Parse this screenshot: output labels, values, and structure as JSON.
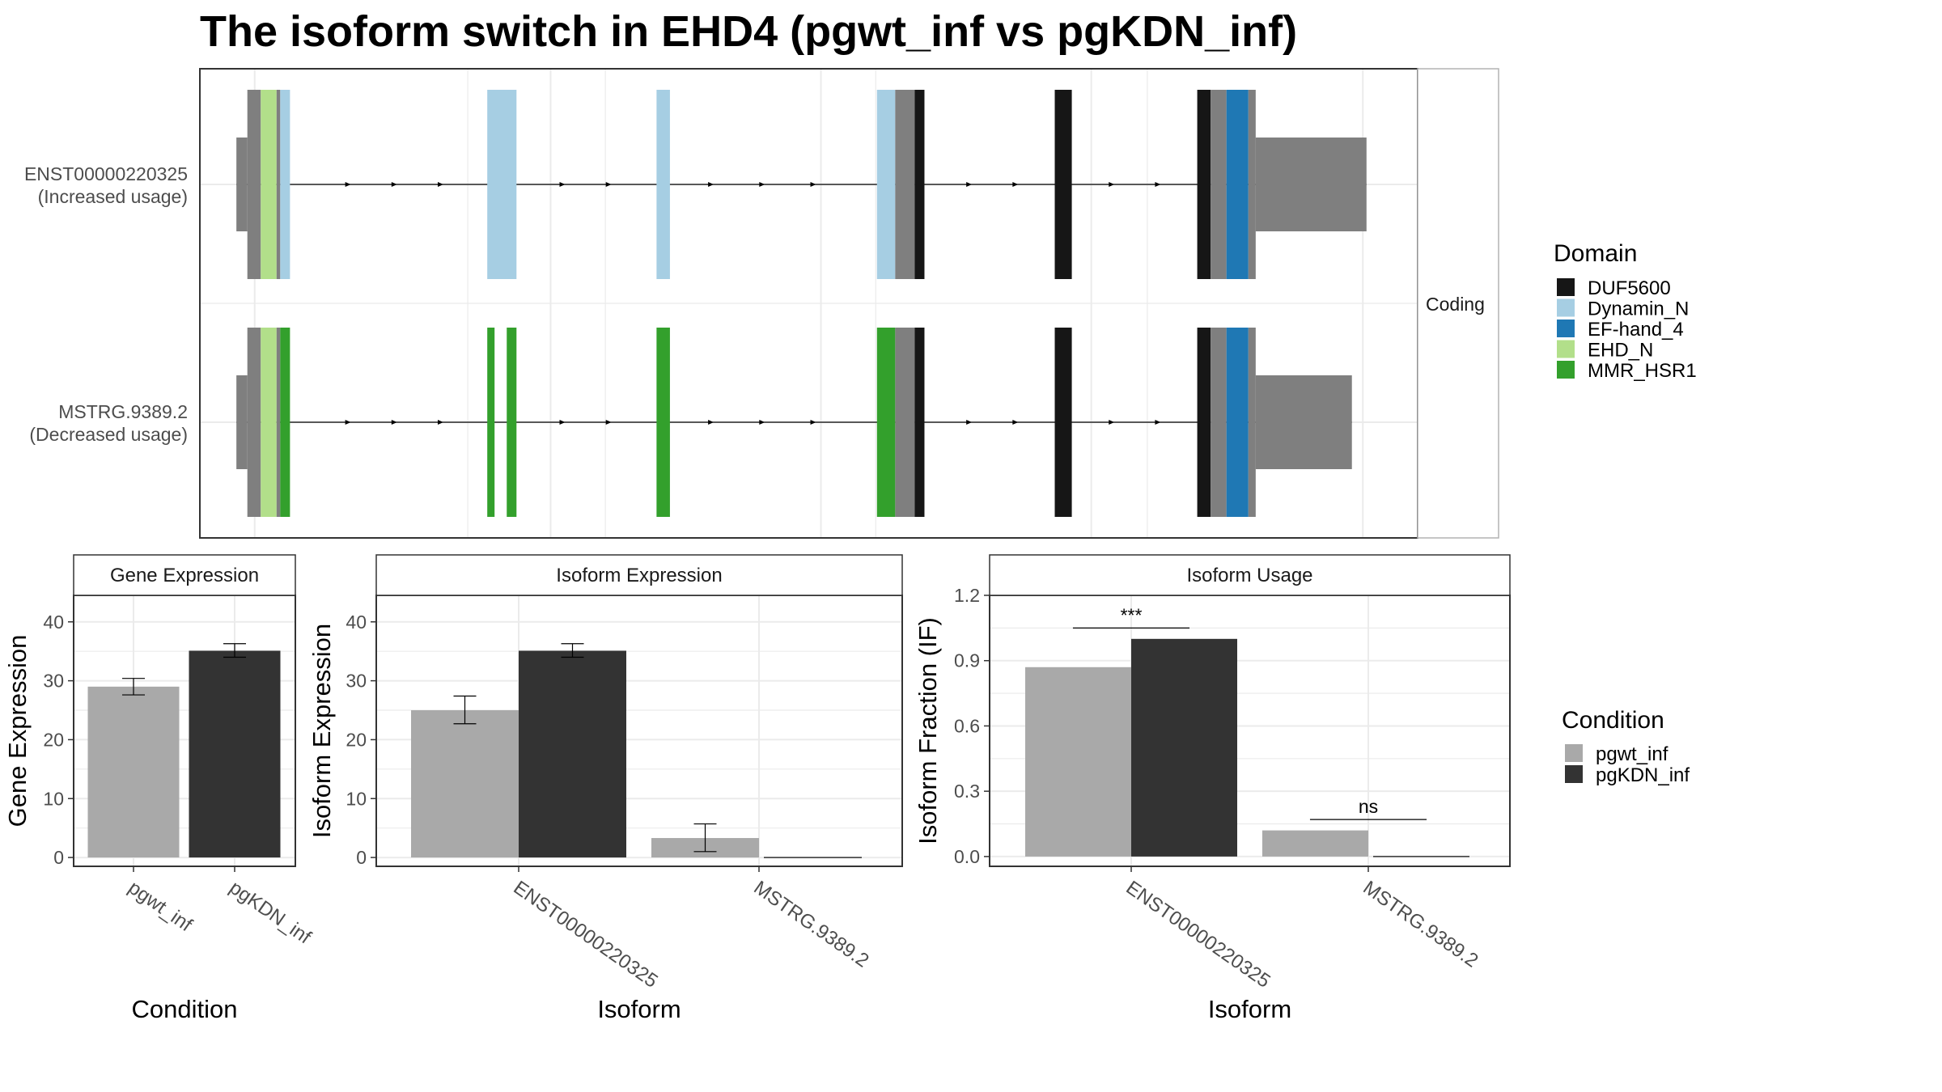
{
  "title": "The isoform switch in EHD4 (pgwt_inf vs pgKDN_inf)",
  "colors": {
    "utr": "#7f7f7f",
    "intron": "#000000",
    "grid": "#ebebeb",
    "panel_border": "#333333",
    "strip_border": "#b3b3b3",
    "pgwt_inf": "#a9a9a9",
    "pgKDN_inf": "#333333",
    "text": "#4d4d4d"
  },
  "domain_legend": {
    "title": "Domain",
    "items": [
      {
        "name": "DUF5600",
        "color": "#161616"
      },
      {
        "name": "Dynamin_N",
        "color": "#a6cee3"
      },
      {
        "name": "EF-hand_4",
        "color": "#1f78b4"
      },
      {
        "name": "EHD_N",
        "color": "#b2df8a"
      },
      {
        "name": "MMR_HSR1",
        "color": "#33a02c"
      }
    ]
  },
  "condition_legend": {
    "title": "Condition",
    "items": [
      {
        "name": "pgwt_inf",
        "color": "#a9a9a9"
      },
      {
        "name": "pgKDN_inf",
        "color": "#333333"
      }
    ]
  },
  "structure": {
    "facet_label": "Coding",
    "isoforms": [
      {
        "id": "ENST00000220325",
        "usage": "(Increased usage)",
        "blocks": [
          [
            0.03,
            0.039,
            "utr",
            "utr"
          ],
          [
            0.039,
            0.05,
            "utr",
            "cds"
          ],
          [
            0.05,
            0.063,
            "EHD_N",
            "cds"
          ],
          [
            0.063,
            0.066,
            "utr",
            "cds"
          ],
          [
            0.066,
            0.074,
            "Dynamin_N",
            "cds"
          ],
          [
            0.236,
            0.26,
            "Dynamin_N",
            "cds"
          ],
          [
            0.375,
            0.386,
            "Dynamin_N",
            "cds"
          ],
          [
            0.556,
            0.571,
            "Dynamin_N",
            "cds"
          ],
          [
            0.571,
            0.587,
            "utr",
            "cds"
          ],
          [
            0.587,
            0.595,
            "DUF5600",
            "cds"
          ],
          [
            0.702,
            0.716,
            "DUF5600",
            "cds"
          ],
          [
            0.819,
            0.83,
            "DUF5600",
            "cds"
          ],
          [
            0.83,
            0.843,
            "utr",
            "cds"
          ],
          [
            0.843,
            0.861,
            "EF-hand_4",
            "cds"
          ],
          [
            0.861,
            0.867,
            "utr",
            "cds"
          ],
          [
            0.867,
            0.958,
            "utr",
            "utr"
          ]
        ],
        "arrows": [
          0.122,
          0.16,
          0.198,
          0.298,
          0.336,
          0.42,
          0.462,
          0.504,
          0.632,
          0.67,
          0.749,
          0.787
        ]
      },
      {
        "id": "MSTRG.9389.2",
        "usage": "(Decreased usage)",
        "blocks": [
          [
            0.03,
            0.039,
            "utr",
            "utr"
          ],
          [
            0.039,
            0.05,
            "utr",
            "cds"
          ],
          [
            0.05,
            0.063,
            "EHD_N",
            "cds"
          ],
          [
            0.063,
            0.066,
            "utr",
            "cds"
          ],
          [
            0.066,
            0.074,
            "MMR_HSR1",
            "cds"
          ],
          [
            0.236,
            0.242,
            "MMR_HSR1",
            "cds"
          ],
          [
            0.252,
            0.26,
            "MMR_HSR1",
            "cds"
          ],
          [
            0.375,
            0.386,
            "MMR_HSR1",
            "cds"
          ],
          [
            0.556,
            0.571,
            "MMR_HSR1",
            "cds"
          ],
          [
            0.571,
            0.587,
            "utr",
            "cds"
          ],
          [
            0.587,
            0.595,
            "DUF5600",
            "cds"
          ],
          [
            0.702,
            0.716,
            "DUF5600",
            "cds"
          ],
          [
            0.819,
            0.83,
            "DUF5600",
            "cds"
          ],
          [
            0.83,
            0.843,
            "utr",
            "cds"
          ],
          [
            0.843,
            0.861,
            "EF-hand_4",
            "cds"
          ],
          [
            0.861,
            0.867,
            "utr",
            "cds"
          ],
          [
            0.867,
            0.946,
            "utr",
            "utr"
          ]
        ],
        "arrows": [
          0.122,
          0.16,
          0.198,
          0.298,
          0.336,
          0.42,
          0.462,
          0.504,
          0.632,
          0.67,
          0.749,
          0.787
        ]
      }
    ]
  },
  "chart_data": [
    {
      "type": "bar",
      "title": "Gene Expression",
      "xlabel": "Condition",
      "ylabel": "Gene Expression",
      "ylim": [
        -1.5,
        44.5
      ],
      "yticks": [
        0,
        10,
        20,
        30,
        40
      ],
      "tick_labels": [
        "0",
        "10",
        "20",
        "30",
        "40"
      ],
      "categories": [
        "pgwt_inf",
        "pgKDN_inf"
      ],
      "bars": [
        {
          "category": "pgwt_inf",
          "condition": "pgwt_inf",
          "value": 29.0,
          "err": [
            27.6,
            30.4
          ]
        },
        {
          "category": "pgKDN_inf",
          "condition": "pgKDN_inf",
          "value": 35.1,
          "err": [
            34.0,
            36.3
          ]
        }
      ]
    },
    {
      "type": "bar",
      "title": "Isoform Expression",
      "xlabel": "Isoform",
      "ylabel": "Isoform Expression",
      "ylim": [
        -1.5,
        44.5
      ],
      "yticks": [
        0,
        10,
        20,
        30,
        40
      ],
      "tick_labels": [
        "0",
        "10",
        "20",
        "30",
        "40"
      ],
      "categories": [
        "ENST00000220325",
        "MSTRG.9389.2"
      ],
      "series": [
        {
          "name": "pgwt_inf",
          "values": [
            25.0,
            3.3
          ],
          "err": [
            [
              22.7,
              27.4
            ],
            [
              1.0,
              5.7
            ]
          ]
        },
        {
          "name": "pgKDN_inf",
          "values": [
            35.1,
            0.0
          ],
          "err": [
            [
              34.0,
              36.3
            ],
            [
              0.0,
              0.0
            ]
          ]
        }
      ]
    },
    {
      "type": "bar",
      "title": "Isoform Usage",
      "xlabel": "Isoform",
      "ylabel": "Isoform Fraction (IF)",
      "ylim": [
        -0.045,
        1.2
      ],
      "yticks": [
        0,
        0.3,
        0.6,
        0.9,
        1.2
      ],
      "tick_labels": [
        "0.0",
        "0.3",
        "0.6",
        "0.9",
        "1.2"
      ],
      "categories": [
        "ENST00000220325",
        "MSTRG.9389.2"
      ],
      "series": [
        {
          "name": "pgwt_inf",
          "values": [
            0.87,
            0.12
          ]
        },
        {
          "name": "pgKDN_inf",
          "values": [
            1.0,
            0.0
          ]
        }
      ],
      "significance": [
        {
          "category": "ENST00000220325",
          "label": "***",
          "y": 1.05
        },
        {
          "category": "MSTRG.9389.2",
          "label": "ns",
          "y": 0.17
        }
      ]
    }
  ]
}
